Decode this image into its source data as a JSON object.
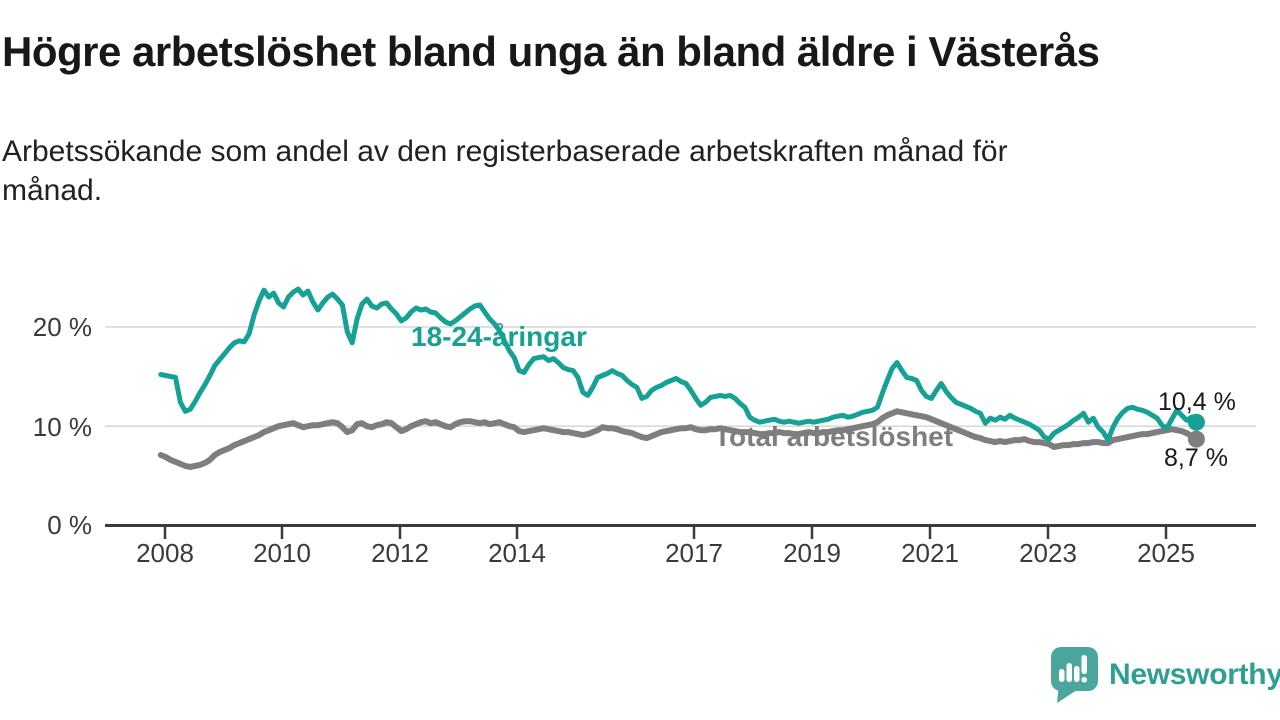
{
  "title": "Högre arbetslöshet bland unga än bland äldre i Västerås",
  "subtitle": "Arbetssökande som andel av den registerbaserade arbetskraften månad för månad.",
  "chart_data": {
    "type": "line",
    "x_start": "2008-01",
    "x_interval": "monthly",
    "x_end": "2025-08",
    "y_unit": "%",
    "ylim": [
      0,
      25
    ],
    "yticks": [
      "0 %",
      "10 %",
      "20 %"
    ],
    "xticks": [
      "2008",
      "2010",
      "2012",
      "2014",
      "2017",
      "2019",
      "2021",
      "2023",
      "2025"
    ],
    "grid": "horizontal gridlines at 10% and 20%",
    "legend_position": "inline labels on lines",
    "series": [
      {
        "name": "18-24-åringar",
        "color": "#16a195",
        "last_value_label": "10,4 %",
        "values": [
          15.2,
          15.1,
          15.0,
          14.9,
          12.4,
          11.5,
          11.7,
          12.5,
          13.4,
          14.2,
          15.1,
          16.1,
          16.7,
          17.3,
          17.9,
          18.4,
          18.6,
          18.5,
          19.3,
          21.2,
          22.6,
          23.7,
          23.0,
          23.4,
          22.4,
          22.0,
          23.0,
          23.5,
          23.8,
          23.2,
          23.6,
          22.5,
          21.7,
          22.4,
          23.0,
          23.3,
          22.8,
          22.2,
          19.5,
          18.4,
          20.8,
          22.3,
          22.8,
          22.1,
          21.9,
          22.3,
          22.4,
          21.8,
          21.3,
          20.6,
          20.9,
          21.5,
          21.9,
          21.7,
          21.8,
          21.5,
          21.4,
          20.9,
          20.5,
          20.3,
          20.6,
          21.0,
          21.4,
          21.8,
          22.1,
          22.2,
          21.5,
          20.8,
          20.3,
          19.6,
          18.6,
          17.6,
          16.9,
          15.6,
          15.4,
          16.2,
          16.8,
          16.9,
          17.0,
          16.6,
          16.8,
          16.4,
          15.9,
          15.7,
          15.6,
          14.9,
          13.4,
          13.1,
          13.9,
          14.9,
          15.1,
          15.3,
          15.6,
          15.3,
          15.1,
          14.6,
          14.2,
          13.9,
          12.8,
          13.0,
          13.6,
          13.9,
          14.1,
          14.4,
          14.6,
          14.8,
          14.5,
          14.3,
          13.6,
          12.8,
          12.1,
          12.4,
          12.9,
          13.0,
          13.1,
          13.0,
          13.1,
          12.8,
          12.3,
          11.9,
          10.9,
          10.6,
          10.4,
          10.5,
          10.6,
          10.7,
          10.5,
          10.4,
          10.5,
          10.4,
          10.3,
          10.4,
          10.5,
          10.4,
          10.5,
          10.6,
          10.7,
          10.9,
          11.0,
          11.1,
          10.9,
          11.0,
          11.2,
          11.4,
          11.5,
          11.6,
          11.9,
          13.3,
          14.6,
          15.8,
          16.4,
          15.6,
          14.9,
          14.8,
          14.6,
          13.6,
          13.0,
          12.8,
          13.6,
          14.3,
          13.5,
          12.9,
          12.4,
          12.2,
          12.0,
          11.8,
          11.5,
          11.3,
          10.3,
          10.8,
          10.6,
          10.9,
          10.7,
          11.1,
          10.8,
          10.6,
          10.4,
          10.2,
          9.9,
          9.6,
          8.9,
          8.7,
          9.3,
          9.6,
          9.9,
          10.2,
          10.6,
          10.9,
          11.3,
          10.4,
          10.8,
          9.9,
          9.4,
          8.6,
          9.9,
          10.8,
          11.4,
          11.8,
          11.9,
          11.7,
          11.6,
          11.4,
          11.1,
          10.8,
          10.1,
          9.8,
          10.7,
          11.6,
          11.1,
          10.6,
          10.9,
          10.4
        ]
      },
      {
        "name": "Total arbetslöshet",
        "color": "#7e7e7e",
        "last_value_label": "8,7 %",
        "values": [
          7.1,
          6.9,
          6.6,
          6.4,
          6.2,
          6.0,
          5.9,
          6.0,
          6.1,
          6.3,
          6.6,
          7.1,
          7.4,
          7.6,
          7.8,
          8.1,
          8.3,
          8.5,
          8.7,
          8.9,
          9.1,
          9.4,
          9.6,
          9.8,
          10.0,
          10.1,
          10.2,
          10.3,
          10.1,
          9.9,
          10.0,
          10.1,
          10.1,
          10.2,
          10.3,
          10.4,
          10.3,
          9.9,
          9.4,
          9.6,
          10.2,
          10.3,
          10.0,
          9.9,
          10.1,
          10.2,
          10.4,
          10.3,
          9.9,
          9.5,
          9.7,
          10.0,
          10.2,
          10.4,
          10.5,
          10.3,
          10.4,
          10.2,
          10.0,
          9.9,
          10.2,
          10.4,
          10.5,
          10.5,
          10.4,
          10.3,
          10.4,
          10.2,
          10.3,
          10.4,
          10.2,
          10.0,
          9.9,
          9.5,
          9.4,
          9.5,
          9.6,
          9.7,
          9.8,
          9.7,
          9.6,
          9.5,
          9.4,
          9.4,
          9.3,
          9.2,
          9.1,
          9.2,
          9.4,
          9.6,
          9.9,
          9.8,
          9.8,
          9.7,
          9.5,
          9.4,
          9.3,
          9.1,
          8.9,
          8.8,
          9.0,
          9.2,
          9.4,
          9.5,
          9.6,
          9.7,
          9.8,
          9.8,
          9.9,
          9.7,
          9.6,
          9.6,
          9.7,
          9.7,
          9.8,
          9.7,
          9.6,
          9.5,
          9.4,
          9.4,
          9.4,
          9.3,
          9.2,
          9.2,
          9.3,
          9.3,
          9.4,
          9.3,
          9.3,
          9.2,
          9.2,
          9.3,
          9.4,
          9.3,
          9.3,
          9.4,
          9.4,
          9.5,
          9.6,
          9.6,
          9.7,
          9.8,
          9.9,
          10.0,
          10.1,
          10.2,
          10.4,
          10.8,
          11.1,
          11.3,
          11.5,
          11.4,
          11.3,
          11.2,
          11.1,
          11.0,
          10.9,
          10.7,
          10.5,
          10.3,
          10.1,
          9.9,
          9.7,
          9.5,
          9.3,
          9.1,
          8.9,
          8.8,
          8.6,
          8.5,
          8.4,
          8.5,
          8.4,
          8.5,
          8.6,
          8.6,
          8.7,
          8.5,
          8.4,
          8.4,
          8.3,
          8.2,
          7.9,
          8.0,
          8.1,
          8.1,
          8.2,
          8.2,
          8.3,
          8.3,
          8.4,
          8.4,
          8.3,
          8.3,
          8.6,
          8.7,
          8.8,
          8.9,
          9.0,
          9.1,
          9.2,
          9.2,
          9.3,
          9.4,
          9.5,
          9.6,
          9.7,
          9.6,
          9.5,
          9.3,
          9.0,
          8.7
        ]
      }
    ]
  },
  "branding": {
    "logo_text": "Newsworthy",
    "logo_text_color": "#2ea093",
    "logo_icon_color": "#4ba79e"
  }
}
